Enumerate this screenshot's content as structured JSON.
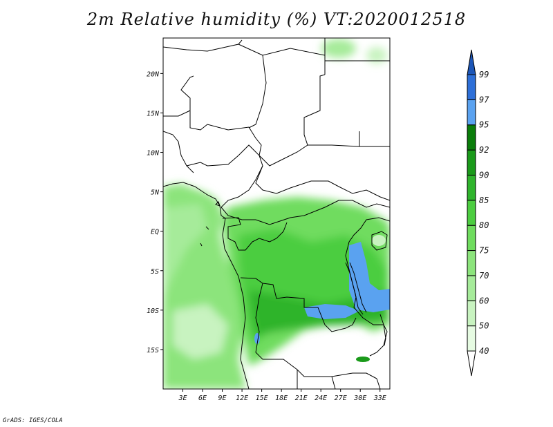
{
  "title": "2m Relative humidity (%) VT:2020012518",
  "credit": "GrADS: IGES/COLA",
  "map": {
    "lat_range": [
      -20,
      24.5
    ],
    "lon_range": [
      0,
      34.5
    ],
    "lat_ticks": [
      {
        "value": 20,
        "label": "20N"
      },
      {
        "value": 15,
        "label": "15N"
      },
      {
        "value": 10,
        "label": "10N"
      },
      {
        "value": 5,
        "label": "5N"
      },
      {
        "value": 0,
        "label": "EQ"
      },
      {
        "value": -5,
        "label": "5S"
      },
      {
        "value": -10,
        "label": "10S"
      },
      {
        "value": -15,
        "label": "15S"
      }
    ],
    "lon_ticks": [
      {
        "value": 3,
        "label": "3E"
      },
      {
        "value": 6,
        "label": "6E"
      },
      {
        "value": 9,
        "label": "9E"
      },
      {
        "value": 12,
        "label": "12E"
      },
      {
        "value": 15,
        "label": "15E"
      },
      {
        "value": 18,
        "label": "18E"
      },
      {
        "value": 21,
        "label": "21E"
      },
      {
        "value": 24,
        "label": "24E"
      },
      {
        "value": 27,
        "label": "27E"
      },
      {
        "value": 30,
        "label": "30E"
      },
      {
        "value": 33,
        "label": "33E"
      }
    ]
  },
  "colorbar": {
    "levels": [
      "40",
      "50",
      "60",
      "70",
      "75",
      "80",
      "85",
      "90",
      "92",
      "95",
      "97",
      "99"
    ],
    "colors": [
      "#ffffff",
      "#e6fbe2",
      "#c8f3c0",
      "#a6eb9a",
      "#8ce47c",
      "#6fdc5e",
      "#4ccd40",
      "#2fb42c",
      "#1a9a1a",
      "#0a7d0a",
      "#5aa2f0",
      "#2d6fd8",
      "#1c56b8"
    ]
  }
}
